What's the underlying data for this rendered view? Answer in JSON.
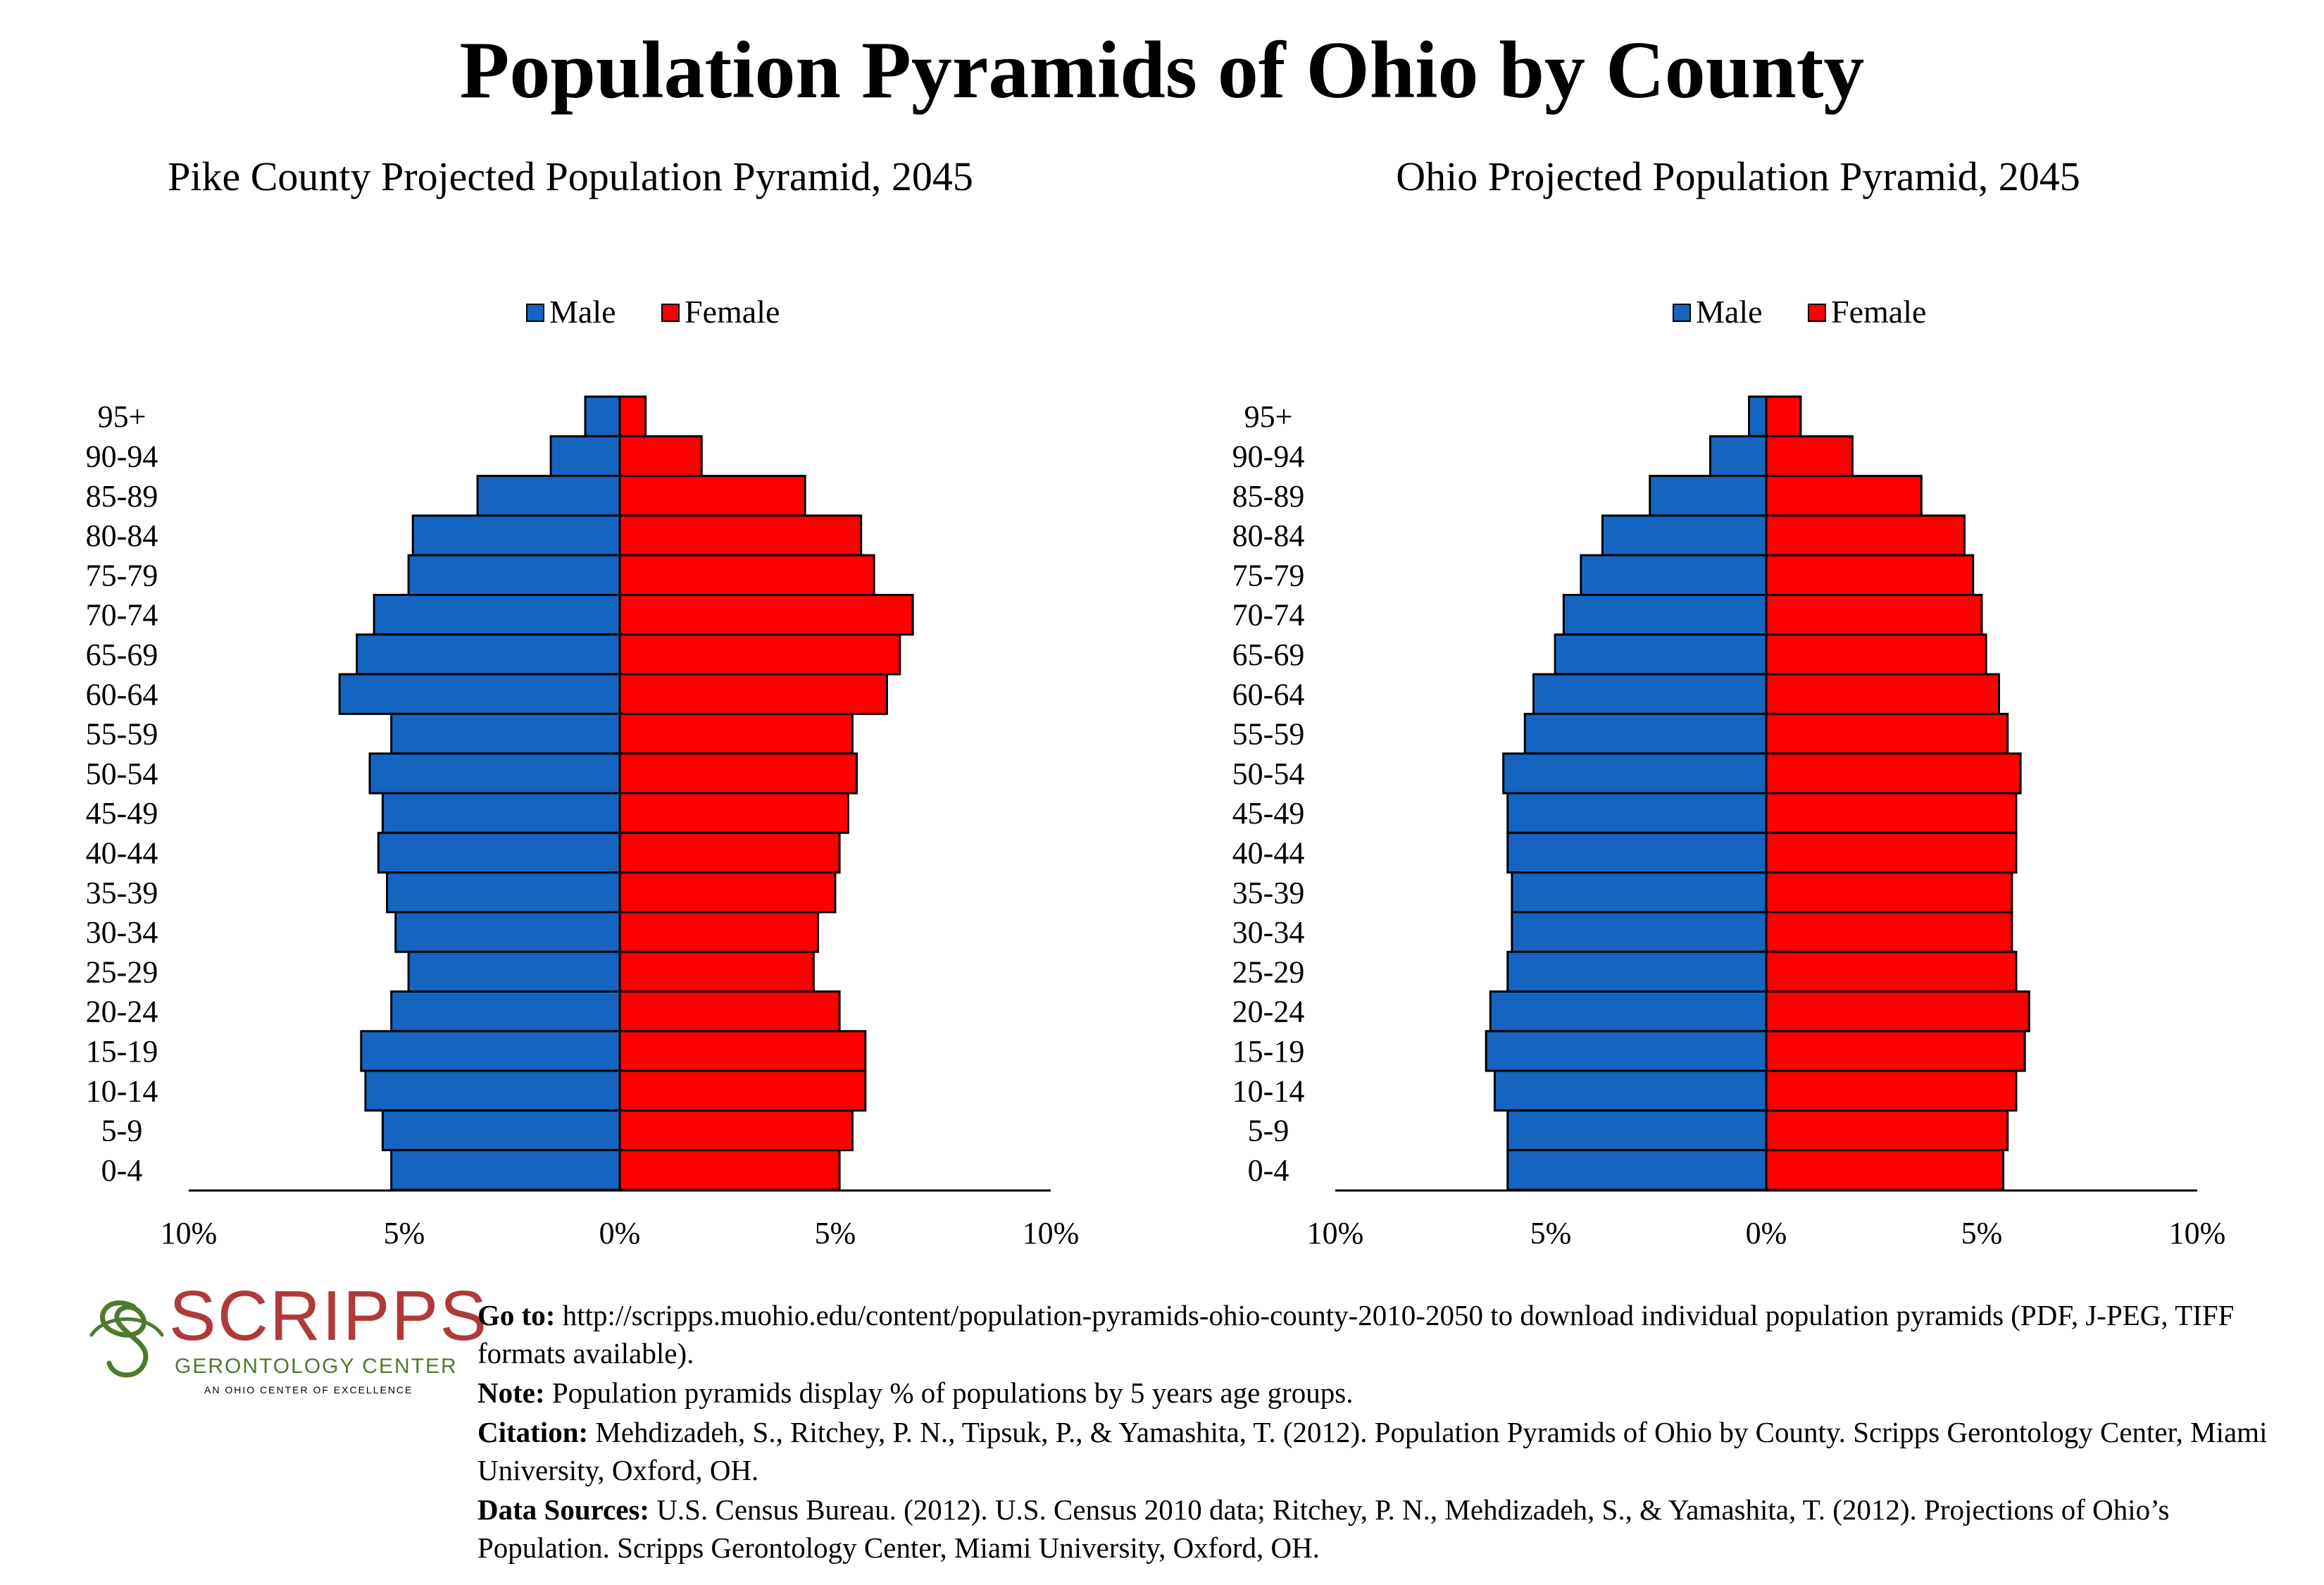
{
  "main_title": "Population Pyramids of Ohio by County",
  "colors": {
    "male": "#1565c0",
    "female": "#ff0000",
    "logo_red": "#b03a3a",
    "logo_green": "#4f7a2e"
  },
  "logo": {
    "word": "SCRIPPS",
    "sub": "GERONTOLOGY CENTER",
    "tag": "AN OHIO CENTER OF EXCELLENCE"
  },
  "notes": {
    "goto_label": "Go to:",
    "goto_text": "http://scripps.muohio.edu/content/population-pyramids-ohio-county-2010-2050 to download individual population pyramids (PDF, J-PEG, TIFF formats available).",
    "note_label": "Note:",
    "note_text": "Population pyramids display % of populations by 5 years age groups.",
    "citation_label": "Citation:",
    "citation_text": "Mehdizadeh, S., Ritchey, P. N., Tipsuk, P., & Yamashita, T. (2012). Population Pyramids of Ohio by County. Scripps Gerontology Center, Miami University, Oxford, OH.",
    "sources_label": "Data Sources:",
    "sources_text": "U.S. Census Bureau. (2012). U.S. Census 2010 data; Ritchey, P. N., Mehdizadeh, S., & Yamashita, T. (2012). Projections of Ohio’s Population. Scripps Gerontology Center, Miami University, Oxford, OH."
  },
  "chart_data": [
    {
      "type": "bar",
      "orientation": "population-pyramid",
      "title": "Pike County Projected Population Pyramid, 2045",
      "legend": [
        "Male",
        "Female"
      ],
      "legend_position": "top-center",
      "categories": [
        "95+",
        "90-94",
        "85-89",
        "80-84",
        "75-79",
        "70-74",
        "65-69",
        "60-64",
        "55-59",
        "50-54",
        "45-49",
        "40-44",
        "35-39",
        "30-34",
        "25-29",
        "20-24",
        "15-19",
        "10-14",
        "5-9",
        "0-4"
      ],
      "series": [
        {
          "name": "Male",
          "values": [
            0.8,
            1.6,
            3.3,
            4.8,
            4.9,
            5.7,
            6.1,
            6.5,
            5.3,
            5.8,
            5.5,
            5.6,
            5.4,
            5.2,
            4.9,
            5.3,
            6.0,
            5.9,
            5.5,
            5.3
          ]
        },
        {
          "name": "Female",
          "values": [
            0.6,
            1.9,
            4.3,
            5.6,
            5.9,
            6.8,
            6.5,
            6.2,
            5.4,
            5.5,
            5.3,
            5.1,
            5.0,
            4.6,
            4.5,
            5.1,
            5.7,
            5.7,
            5.4,
            5.1
          ]
        }
      ],
      "xlim": [
        -10,
        10
      ],
      "x_ticks": [
        "10%",
        "5%",
        "0%",
        "5%",
        "10%"
      ],
      "grid": false
    },
    {
      "type": "bar",
      "orientation": "population-pyramid",
      "title": "Ohio Projected Population Pyramid, 2045",
      "legend": [
        "Male",
        "Female"
      ],
      "legend_position": "top-center",
      "categories": [
        "95+",
        "90-94",
        "85-89",
        "80-84",
        "75-79",
        "70-74",
        "65-69",
        "60-64",
        "55-59",
        "50-54",
        "45-49",
        "40-44",
        "35-39",
        "30-34",
        "25-29",
        "20-24",
        "15-19",
        "10-14",
        "5-9",
        "0-4"
      ],
      "series": [
        {
          "name": "Male",
          "values": [
            0.4,
            1.3,
            2.7,
            3.8,
            4.3,
            4.7,
            4.9,
            5.4,
            5.6,
            6.1,
            6.0,
            6.0,
            5.9,
            5.9,
            6.0,
            6.4,
            6.5,
            6.3,
            6.0,
            6.0
          ]
        },
        {
          "name": "Female",
          "values": [
            0.8,
            2.0,
            3.6,
            4.6,
            4.8,
            5.0,
            5.1,
            5.4,
            5.6,
            5.9,
            5.8,
            5.8,
            5.7,
            5.7,
            5.8,
            6.1,
            6.0,
            5.8,
            5.6,
            5.5
          ]
        }
      ],
      "xlim": [
        -10,
        10
      ],
      "x_ticks": [
        "10%",
        "5%",
        "0%",
        "5%",
        "10%"
      ],
      "grid": false
    }
  ]
}
